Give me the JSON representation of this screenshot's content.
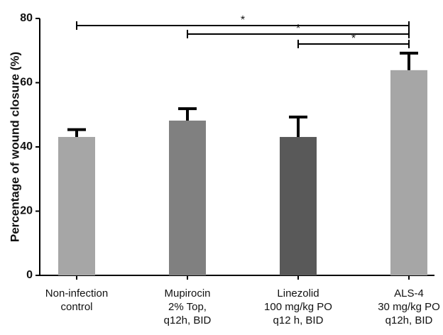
{
  "chart_data": {
    "type": "bar",
    "y_label": "Percentage of wound closure (%)",
    "categories": [
      "Non-infection\ncontrol",
      "Mupirocin\n2% Top,\nq12h, BID",
      "Linezolid\n100 mg/kg PO\nq12 h, BID",
      "ALS-4\n30 mg/kg PO\nq12h, BID"
    ],
    "values": [
      43.1,
      48.2,
      43.1,
      63.9
    ],
    "errors": [
      2.3,
      3.7,
      6.2,
      5.3
    ],
    "colors": [
      "#a6a6a6",
      "#808080",
      "#595959",
      "#a6a6a6"
    ],
    "ylim": [
      0,
      80
    ],
    "yticks": [
      0,
      20,
      40,
      60,
      80
    ],
    "grid": false,
    "annotations": [
      "*",
      "*",
      "*"
    ]
  }
}
